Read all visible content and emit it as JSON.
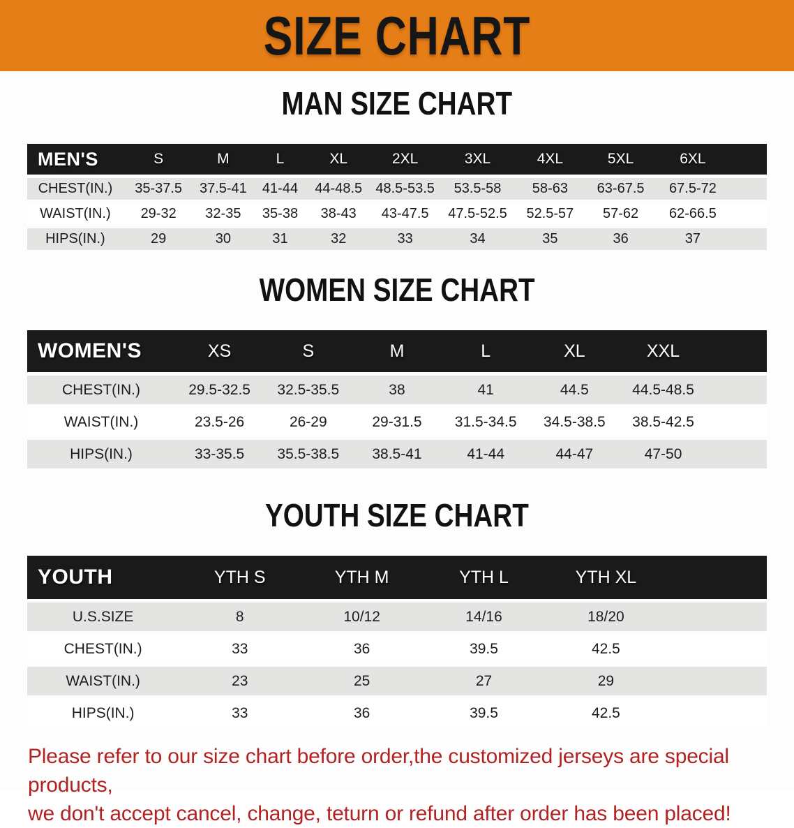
{
  "banner": {
    "title": "SIZE CHART"
  },
  "men": {
    "title": "MAN SIZE CHART",
    "header": [
      "MEN'S",
      "S",
      "M",
      "L",
      "XL",
      "2XL",
      "3XL",
      "4XL",
      "5XL",
      "6XL"
    ],
    "rows": [
      {
        "label": "CHEST(IN.)",
        "values": [
          "35-37.5",
          "37.5-41",
          "41-44",
          "44-48.5",
          "48.5-53.5",
          "53.5-58",
          "58-63",
          "63-67.5",
          "67.5-72"
        ]
      },
      {
        "label": "WAIST(IN.)",
        "values": [
          "29-32",
          "32-35",
          "35-38",
          "38-43",
          "43-47.5",
          "47.5-52.5",
          "52.5-57",
          "57-62",
          "62-66.5"
        ]
      },
      {
        "label": "HIPS(IN.)",
        "values": [
          "29",
          "30",
          "31",
          "32",
          "33",
          "34",
          "35",
          "36",
          "37"
        ]
      }
    ]
  },
  "women": {
    "title": "WOMEN SIZE CHART",
    "header": [
      "WOMEN'S",
      "XS",
      "S",
      "M",
      "L",
      "XL",
      "XXL"
    ],
    "rows": [
      {
        "label": "CHEST(IN.)",
        "values": [
          "29.5-32.5",
          "32.5-35.5",
          "38",
          "41",
          "44.5",
          "44.5-48.5"
        ]
      },
      {
        "label": "WAIST(IN.)",
        "values": [
          "23.5-26",
          "26-29",
          "29-31.5",
          "31.5-34.5",
          "34.5-38.5",
          "38.5-42.5"
        ]
      },
      {
        "label": "HIPS(IN.)",
        "values": [
          "33-35.5",
          "35.5-38.5",
          "38.5-41",
          "41-44",
          "44-47",
          "47-50"
        ]
      }
    ]
  },
  "youth": {
    "title": "YOUTH SIZE CHART",
    "header": [
      "YOUTH",
      "YTH S",
      "YTH M",
      "YTH L",
      "YTH XL"
    ],
    "rows": [
      {
        "label": "U.S.SIZE",
        "values": [
          "8",
          "10/12",
          "14/16",
          "18/20"
        ]
      },
      {
        "label": "CHEST(IN.)",
        "values": [
          "33",
          "36",
          "39.5",
          "42.5"
        ]
      },
      {
        "label": "WAIST(IN.)",
        "values": [
          "23",
          "25",
          "27",
          "29"
        ]
      },
      {
        "label": "HIPS(IN.)",
        "values": [
          "33",
          "36",
          "39.5",
          "42.5"
        ]
      }
    ]
  },
  "disclaimer": {
    "line1": "Please refer to our size chart before order,the customized jerseys are special products,",
    "line2": "we don't accept cancel, change, teturn or refund after order has been placed!"
  },
  "colors": {
    "orange": "#e67e17",
    "bar": "#1a1a1a",
    "stripe": "#e4e4e2",
    "red": "#b22222"
  }
}
